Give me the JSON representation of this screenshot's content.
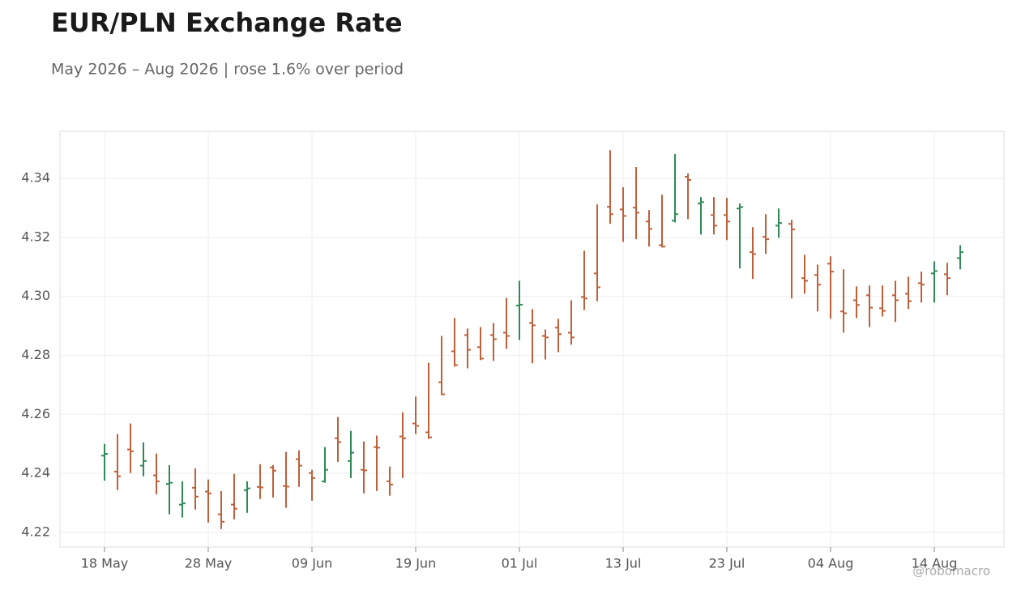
{
  "chart_data": {
    "type": "ohlc",
    "title": "EUR/PLN Exchange Rate",
    "subtitle": "May 2026 – Aug 2026 | rose 1.6% over period",
    "annotation": "@robomacro",
    "up_color": "#2e8b57",
    "down_color": "#c0603a",
    "grid": true,
    "categories": [
      "18 May",
      null,
      null,
      null,
      null,
      null,
      null,
      null,
      "28 May",
      null,
      null,
      null,
      null,
      null,
      null,
      null,
      "09 Jun",
      null,
      null,
      null,
      null,
      null,
      null,
      null,
      "19 Jun",
      null,
      null,
      null,
      null,
      null,
      null,
      null,
      "01 Jul",
      null,
      null,
      null,
      null,
      null,
      null,
      null,
      "13 Jul",
      null,
      null,
      null,
      null,
      null,
      null,
      null,
      "23 Jul",
      null,
      null,
      null,
      null,
      null,
      null,
      null,
      "04 Aug",
      null,
      null,
      null,
      null,
      null,
      null,
      null,
      "14 Aug",
      null,
      null
    ],
    "open": [
      4.246,
      4.2406,
      4.2481,
      4.2426,
      4.2393,
      4.2364,
      4.2294,
      4.2351,
      4.2338,
      4.2261,
      4.2294,
      4.2343,
      4.2354,
      4.242,
      4.2357,
      4.2448,
      4.2401,
      4.2373,
      4.2519,
      4.2442,
      4.2412,
      4.2489,
      4.2373,
      4.2525,
      4.2569,
      4.2539,
      4.2709,
      4.2814,
      4.2869,
      4.2828,
      4.2869,
      4.2877,
      4.2969,
      4.291,
      4.2866,
      4.2894,
      4.2877,
      4.2998,
      4.3078,
      4.3304,
      4.3295,
      4.3301,
      4.3254,
      4.3174,
      4.3257,
      4.3406,
      4.3315,
      4.3276,
      4.3276,
      4.3298,
      4.315,
      4.3202,
      4.324,
      4.3246,
      4.3062,
      4.3073,
      4.3111,
      4.2949,
      4.2987,
      4.3004,
      4.296,
      4.3004,
      4.3009,
      4.3045,
      4.3078,
      4.3075,
      4.313
    ],
    "high": [
      4.25,
      4.2533,
      4.2569,
      4.2505,
      4.2467,
      4.2428,
      4.2373,
      4.2417,
      4.2379,
      4.234,
      4.2398,
      4.2373,
      4.2431,
      4.2428,
      4.2473,
      4.2478,
      4.2412,
      4.2489,
      4.2591,
      4.2544,
      4.2508,
      4.2528,
      4.2423,
      4.2607,
      4.266,
      4.2775,
      4.2866,
      4.2927,
      4.2891,
      4.2896,
      4.291,
      4.2995,
      4.3053,
      4.2957,
      4.2888,
      4.2924,
      4.2987,
      4.3155,
      4.3312,
      4.3496,
      4.337,
      4.3439,
      4.3293,
      4.3345,
      4.3483,
      4.3417,
      4.3337,
      4.3337,
      4.3334,
      4.3315,
      4.3235,
      4.3279,
      4.3298,
      4.326,
      4.3141,
      4.3108,
      4.3136,
      4.3092,
      4.3034,
      4.3037,
      4.3037,
      4.3053,
      4.3067,
      4.3084,
      4.3119,
      4.3114,
      4.3174
    ],
    "low": [
      4.2375,
      4.2343,
      4.2401,
      4.239,
      4.2329,
      4.2261,
      4.225,
      4.2277,
      4.2233,
      4.2211,
      4.2244,
      4.2266,
      4.2313,
      4.2318,
      4.2283,
      4.2354,
      4.2307,
      4.2368,
      4.2439,
      4.2384,
      4.2332,
      4.234,
      4.2324,
      4.2384,
      4.2533,
      4.2517,
      4.2665,
      4.2762,
      4.2756,
      4.2784,
      4.2781,
      4.2822,
      4.2852,
      4.2773,
      4.2786,
      4.2811,
      4.2836,
      4.2954,
      4.2984,
      4.3246,
      4.3185,
      4.3194,
      4.3169,
      4.3166,
      4.3251,
      4.3262,
      4.321,
      4.321,
      4.3191,
      4.3095,
      4.3059,
      4.3144,
      4.3199,
      4.2993,
      4.3009,
      4.2949,
      4.2924,
      4.2877,
      4.2927,
      4.2896,
      4.2932,
      4.2913,
      4.2957,
      4.2979,
      4.2979,
      4.3004,
      4.3092
    ],
    "close": [
      4.2466,
      4.239,
      4.2475,
      4.2442,
      4.2373,
      4.2368,
      4.2298,
      4.2321,
      4.2332,
      4.2236,
      4.228,
      4.2349,
      4.2352,
      4.2409,
      4.2355,
      4.2426,
      4.2384,
      4.2412,
      4.2506,
      4.247,
      4.241,
      4.2487,
      4.2362,
      4.2519,
      4.2561,
      4.2522,
      4.2668,
      4.2767,
      4.2819,
      4.2789,
      4.2855,
      4.2866,
      4.2972,
      4.2902,
      4.2861,
      4.2872,
      4.2861,
      4.2993,
      4.3031,
      4.3279,
      4.3273,
      4.3284,
      4.3229,
      4.3169,
      4.3279,
      4.3395,
      4.332,
      4.324,
      4.3254,
      4.3303,
      4.3144,
      4.3194,
      4.3249,
      4.3227,
      4.3053,
      4.304,
      4.3084,
      4.2943,
      4.2971,
      4.2962,
      4.2951,
      4.2987,
      4.2984,
      4.304,
      4.3086,
      4.3062,
      4.315
    ],
    "ylim": [
      4.215,
      4.356
    ],
    "yticks": [
      4.22,
      4.24,
      4.26,
      4.28,
      {
        "value": 4.3,
        "label": "4.30"
      },
      4.32,
      4.34
    ]
  }
}
